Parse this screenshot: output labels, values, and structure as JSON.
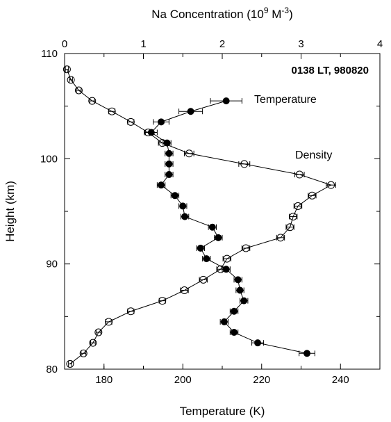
{
  "chart_data": {
    "type": "scatter",
    "title": "",
    "annotation": "0138 LT, 980820",
    "y_axis": {
      "label": "Height (km)",
      "range": [
        80,
        110
      ],
      "ticks": [
        "80",
        "90",
        "100",
        "110"
      ]
    },
    "x_bottom": {
      "label": "Temperature (K)",
      "range": [
        170,
        250
      ],
      "ticks": [
        "180",
        "200",
        "220",
        "240"
      ]
    },
    "x_top": {
      "label_main": "Na Concentration (10",
      "label_exp": "9",
      "label_unit": " M",
      "label_unit_exp": "-3",
      "label_close": ")",
      "range": [
        0,
        4
      ],
      "ticks": [
        "0",
        "1",
        "2",
        "3",
        "4"
      ]
    },
    "series": [
      {
        "name": "Temperature",
        "axis": "bottom",
        "marker": "filled-circle",
        "points": [
          {
            "x": 211.0,
            "y": 105.5,
            "err": 4.0
          },
          {
            "x": 202.0,
            "y": 104.5,
            "err": 3.0
          },
          {
            "x": 194.5,
            "y": 103.5,
            "err": 2.0
          },
          {
            "x": 192.0,
            "y": 102.5,
            "err": 1.5
          },
          {
            "x": 196.0,
            "y": 101.5,
            "err": 1.0
          },
          {
            "x": 196.5,
            "y": 100.5,
            "err": 1.0
          },
          {
            "x": 196.5,
            "y": 99.5,
            "err": 1.0
          },
          {
            "x": 196.5,
            "y": 98.5,
            "err": 1.0
          },
          {
            "x": 194.5,
            "y": 97.5,
            "err": 1.0
          },
          {
            "x": 198.0,
            "y": 96.5,
            "err": 1.0
          },
          {
            "x": 200.0,
            "y": 95.5,
            "err": 1.0
          },
          {
            "x": 200.5,
            "y": 94.5,
            "err": 1.0
          },
          {
            "x": 207.5,
            "y": 93.5,
            "err": 1.0
          },
          {
            "x": 209.0,
            "y": 92.5,
            "err": 1.0
          },
          {
            "x": 204.5,
            "y": 91.5,
            "err": 1.0
          },
          {
            "x": 206.0,
            "y": 90.5,
            "err": 1.0
          },
          {
            "x": 211.0,
            "y": 89.5,
            "err": 1.0
          },
          {
            "x": 214.0,
            "y": 88.5,
            "err": 1.0
          },
          {
            "x": 214.5,
            "y": 87.5,
            "err": 1.0
          },
          {
            "x": 215.5,
            "y": 86.5,
            "err": 1.0
          },
          {
            "x": 213.0,
            "y": 85.5,
            "err": 1.0
          },
          {
            "x": 210.5,
            "y": 84.5,
            "err": 1.0
          },
          {
            "x": 213.0,
            "y": 83.5,
            "err": 1.0
          },
          {
            "x": 219.0,
            "y": 82.5,
            "err": 1.5
          },
          {
            "x": 231.5,
            "y": 81.5,
            "err": 2.0
          }
        ]
      },
      {
        "name": "Density",
        "axis": "top",
        "marker": "open-circle",
        "points": [
          {
            "x": 0.03,
            "y": 108.5,
            "err": 0.02
          },
          {
            "x": 0.08,
            "y": 107.5,
            "err": 0.02
          },
          {
            "x": 0.18,
            "y": 106.5,
            "err": 0.03
          },
          {
            "x": 0.35,
            "y": 105.5,
            "err": 0.03
          },
          {
            "x": 0.6,
            "y": 104.5,
            "err": 0.04
          },
          {
            "x": 0.84,
            "y": 103.5,
            "err": 0.04
          },
          {
            "x": 1.06,
            "y": 102.5,
            "err": 0.05
          },
          {
            "x": 1.24,
            "y": 101.5,
            "err": 0.05
          },
          {
            "x": 1.58,
            "y": 100.5,
            "err": 0.06
          },
          {
            "x": 2.28,
            "y": 99.5,
            "err": 0.07
          },
          {
            "x": 2.98,
            "y": 98.5,
            "err": 0.06
          },
          {
            "x": 3.38,
            "y": 97.5,
            "err": 0.06
          },
          {
            "x": 3.14,
            "y": 96.5,
            "err": 0.05
          },
          {
            "x": 2.96,
            "y": 95.5,
            "err": 0.05
          },
          {
            "x": 2.9,
            "y": 94.5,
            "err": 0.05
          },
          {
            "x": 2.86,
            "y": 93.5,
            "err": 0.05
          },
          {
            "x": 2.74,
            "y": 92.5,
            "err": 0.05
          },
          {
            "x": 2.3,
            "y": 91.5,
            "err": 0.05
          },
          {
            "x": 2.06,
            "y": 90.5,
            "err": 0.05
          },
          {
            "x": 1.98,
            "y": 89.5,
            "err": 0.05
          },
          {
            "x": 1.76,
            "y": 88.5,
            "err": 0.05
          },
          {
            "x": 1.52,
            "y": 87.5,
            "err": 0.05
          },
          {
            "x": 1.24,
            "y": 86.5,
            "err": 0.04
          },
          {
            "x": 0.84,
            "y": 85.5,
            "err": 0.04
          },
          {
            "x": 0.56,
            "y": 84.5,
            "err": 0.04
          },
          {
            "x": 0.43,
            "y": 83.5,
            "err": 0.03
          },
          {
            "x": 0.36,
            "y": 82.5,
            "err": 0.03
          },
          {
            "x": 0.24,
            "y": 81.5,
            "err": 0.03
          },
          {
            "x": 0.07,
            "y": 80.5,
            "err": 0.02
          }
        ]
      }
    ],
    "series_labels": [
      {
        "text": "Temperature",
        "anchor_series": 0
      },
      {
        "text": "Density",
        "anchor_series": 1
      }
    ],
    "grid": false,
    "legend": "none"
  }
}
